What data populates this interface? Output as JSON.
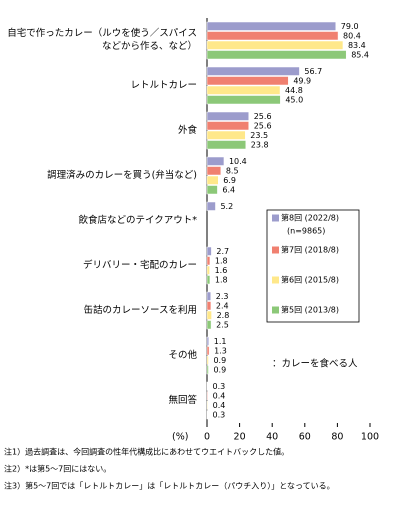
{
  "chart_data": {
    "type": "hbar",
    "categories": [
      [
        "自宅で作ったカレー（ルウを使う／スパイス",
        "などから作る、など）"
      ],
      "レトルトカレー",
      "外食",
      "調理済みのカレーを買う(弁当など)",
      "飲食店などのテイクアウト*",
      "デリバリー・宅配のカレー",
      "缶詰のカレーソースを利用",
      "その他",
      "無回答"
    ],
    "series": [
      {
        "name": "第8回 (2022/8)",
        "color": "#9c9ccc",
        "values": [
          79.0,
          56.7,
          25.6,
          10.4,
          5.2,
          2.7,
          2.3,
          1.1,
          0.3
        ],
        "value_labels": [
          "79.0",
          "56.7",
          "25.6",
          "10.4",
          "5.2",
          "2.7",
          "2.3",
          "1.1",
          "0.3"
        ]
      },
      {
        "name": "第7回 (2018/8)",
        "color": "#f08070",
        "values": [
          80.4,
          49.9,
          25.6,
          8.5,
          null,
          1.8,
          2.4,
          1.3,
          0.4
        ],
        "value_labels": [
          "80.4",
          "49.9",
          "25.6",
          "8.5",
          null,
          "1.8",
          "2.4",
          "1.3",
          "0.4"
        ]
      },
      {
        "name": "第6回 (2015/8)",
        "color": "#ffe88a",
        "values": [
          83.4,
          44.8,
          23.5,
          6.9,
          null,
          1.6,
          2.8,
          0.9,
          0.4
        ],
        "value_labels": [
          "83.4",
          "44.8",
          "23.5",
          "6.9",
          null,
          "1.6",
          "2.8",
          "0.9",
          "0.4"
        ]
      },
      {
        "name": "第5回 (2013/8)",
        "color": "#8cc878",
        "values": [
          85.4,
          45.0,
          23.8,
          6.4,
          null,
          1.8,
          2.5,
          0.9,
          0.3
        ],
        "value_labels": [
          "85.4",
          "45.0",
          "23.8",
          "6.4",
          null,
          "1.8",
          "2.5",
          "0.9",
          "0.3"
        ]
      }
    ],
    "legend_note": "(n=9865)",
    "annotation": "：カレーを食べる人",
    "xlabel": "(%)",
    "xlim": [
      0,
      100
    ],
    "xticks": [
      0,
      20,
      40,
      60,
      80,
      100
    ],
    "notes": [
      "注1）過去調査は、今回調査の性年代構成比にあわせてウエイトバックした値。",
      "注2）*は第5～7回にはない。",
      "注3）第5～7回では「レトルトカレー」は「レトルトカレー（パウチ入り）」となっている。"
    ]
  }
}
